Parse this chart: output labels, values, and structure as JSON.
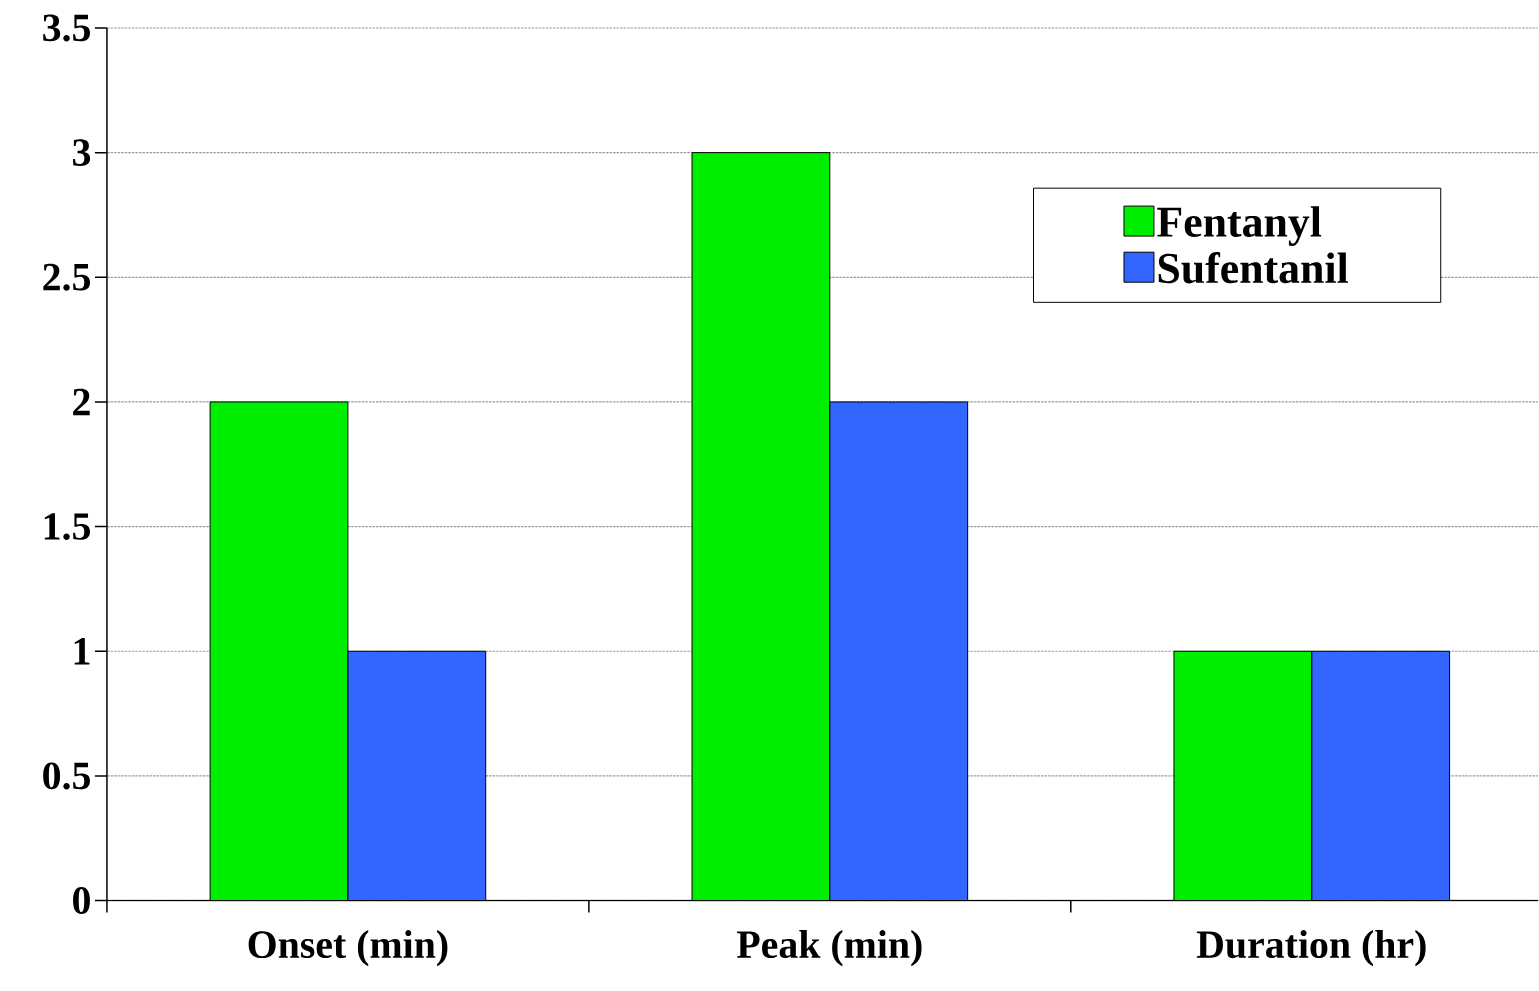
{
  "chart_data": {
    "type": "bar",
    "categories": [
      "Onset (min)",
      "Peak (min)",
      "Duration (hr)"
    ],
    "series": [
      {
        "name": "Fentanyl",
        "color": "#00ee00",
        "values": [
          2,
          3,
          1
        ]
      },
      {
        "name": "Sufentanil",
        "color": "#3366ff",
        "values": [
          1,
          2,
          1
        ]
      }
    ],
    "ylim": [
      0,
      3.5
    ],
    "yticks": [
      0,
      0.5,
      1,
      1.5,
      2,
      2.5,
      3,
      3.5
    ],
    "grid": "y",
    "legend": "top right"
  }
}
